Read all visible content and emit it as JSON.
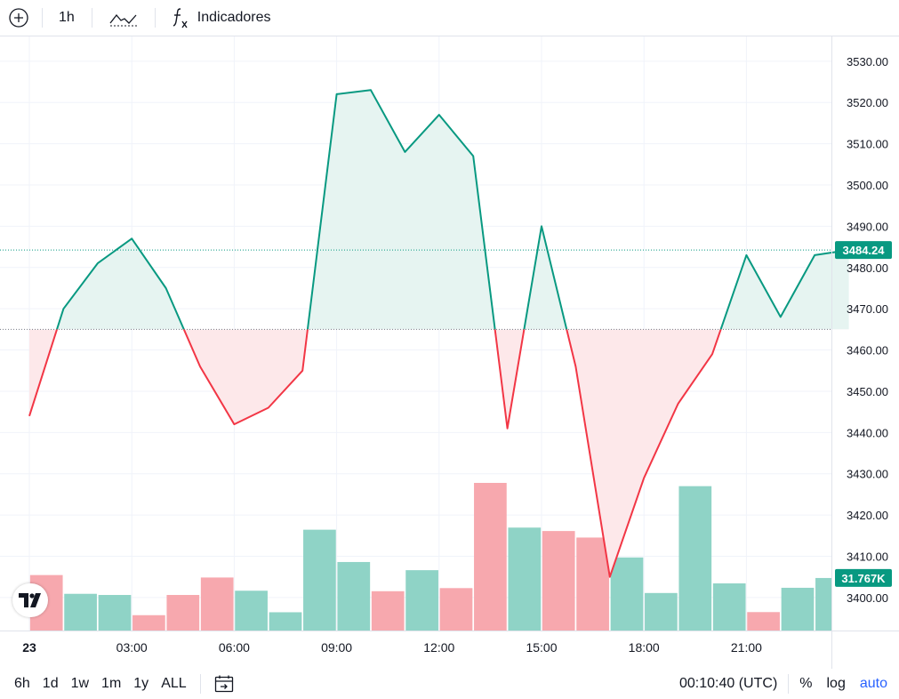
{
  "toolbar": {
    "add_icon": "plus-circle-icon",
    "interval": "1h",
    "chart_type_icon": "line-chart-icon",
    "indicators_icon": "fx-icon",
    "indicators_label": "Indicadores"
  },
  "bottom": {
    "ranges": [
      "6h",
      "1d",
      "1w",
      "1m",
      "1y",
      "ALL"
    ],
    "goto_icon": "calendar-goto-icon",
    "time": "00:10:40 (UTC)",
    "percent": "%",
    "log": "log",
    "auto": "auto"
  },
  "price_badge": "3484.24",
  "volume_badge": "31.767K",
  "logo_icon": "tradingview-logo",
  "colors": {
    "up": "#089981",
    "down": "#f23645",
    "up_fill": "#e6f4f1",
    "down_fill": "#fde8ea",
    "vol_up": "#8fd3c6",
    "vol_down": "#f7a8ae",
    "accent": "#2962ff"
  },
  "chart_data": {
    "type": "area",
    "x_tick_labels": [
      "23",
      "03:00",
      "06:00",
      "09:00",
      "12:00",
      "15:00",
      "18:00",
      "21:00"
    ],
    "y_tick_labels": [
      "3530.00",
      "3520.00",
      "3510.00",
      "3500.00",
      "3490.00",
      "3480.00",
      "3470.00",
      "3460.00",
      "3450.00",
      "3440.00",
      "3430.00",
      "3420.00",
      "3410.00",
      "3400.00"
    ],
    "ylim": [
      3392,
      3536
    ],
    "x_start_hour": -1,
    "base_value": 3465,
    "last_value": 3484.24,
    "series": [
      {
        "values": [
          3444,
          3470,
          3481,
          3487,
          3475,
          3456,
          3442,
          3446,
          3455,
          3522,
          3523,
          3508,
          3517,
          3507,
          3441,
          3490,
          3456,
          3405,
          3429,
          3447,
          3459,
          3483,
          3468,
          3483,
          3484.24
        ]
      }
    ],
    "volume": {
      "values": [
        340,
        225,
        218,
        94,
        218,
        325,
        244,
        112,
        618,
        420,
        241,
        370,
        260,
        905,
        631,
        610,
        570,
        448,
        230,
        885,
        289,
        113,
        262,
        322
      ],
      "direction": [
        "down",
        "up",
        "up",
        "down",
        "down",
        "down",
        "up",
        "up",
        "up",
        "up",
        "down",
        "up",
        "down",
        "down",
        "up",
        "down",
        "down",
        "up",
        "up",
        "up",
        "up",
        "down",
        "up",
        "up"
      ]
    },
    "grid": true
  }
}
